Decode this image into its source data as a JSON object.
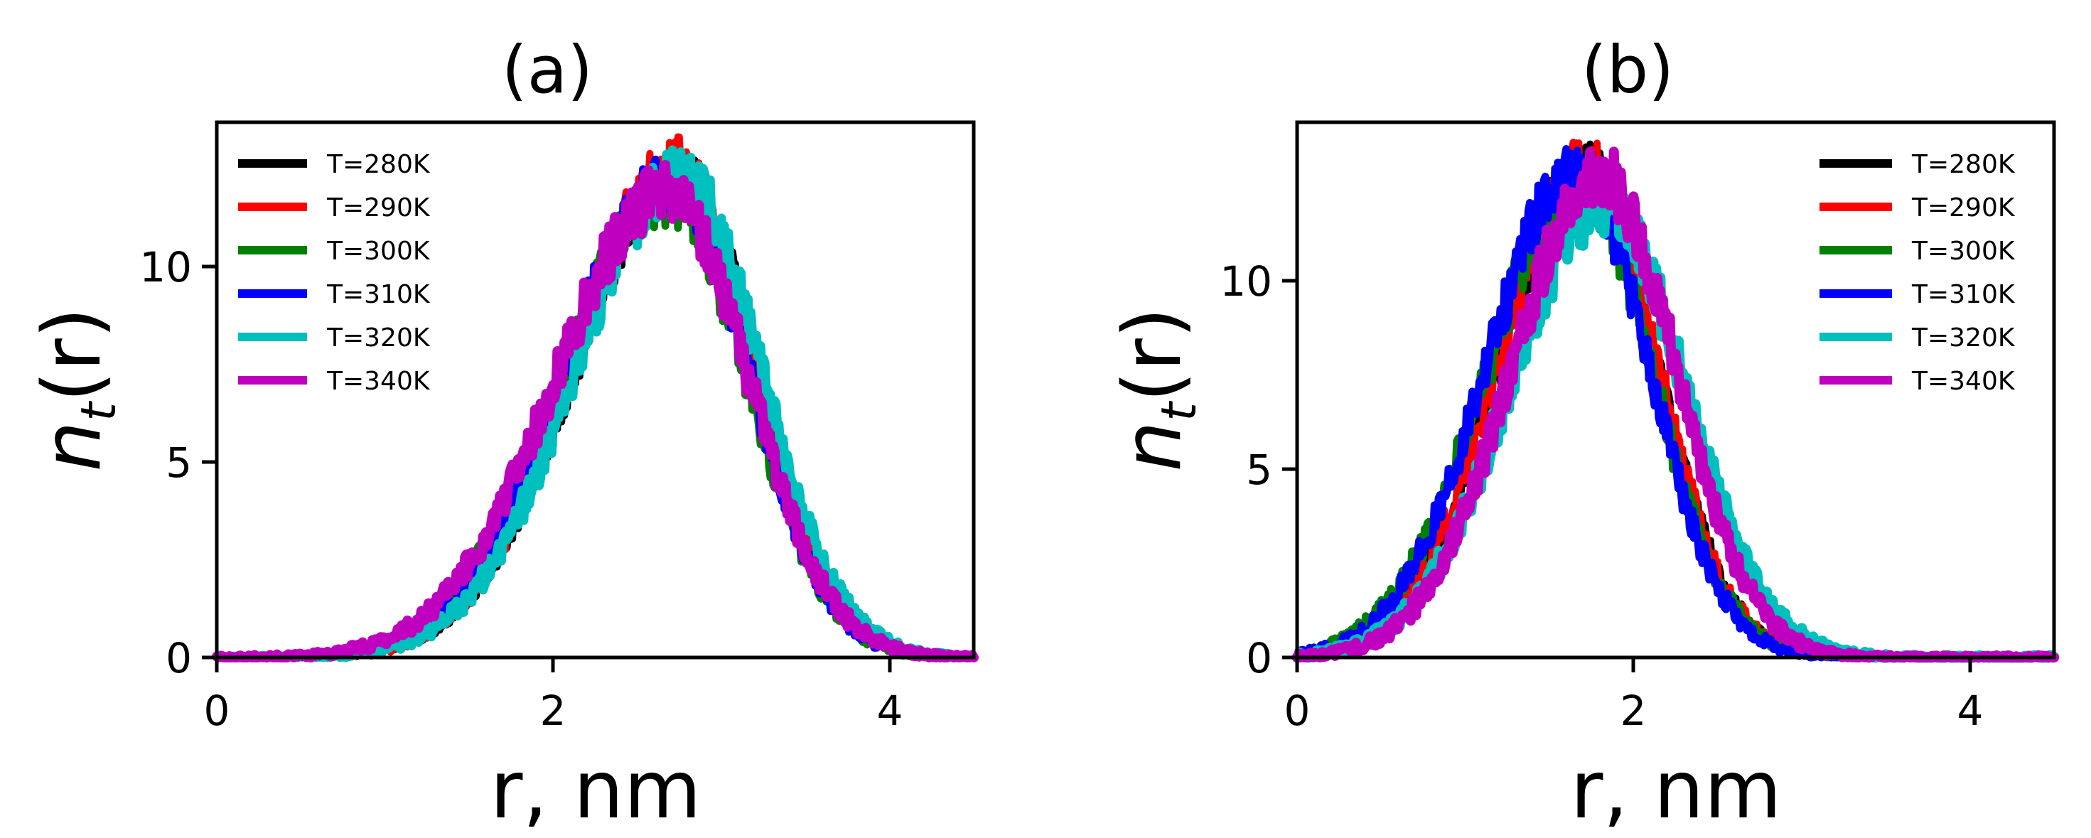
{
  "chart_data": [
    {
      "type": "line",
      "id": "a",
      "title": "(a)",
      "xlabel": "r, nm",
      "ylabel_main": "n",
      "ylabel_sub": "t",
      "ylabel_arg": "(r)",
      "xlim": [
        0,
        4.5
      ],
      "ylim": [
        0,
        13.7
      ],
      "xticks": [
        0,
        2,
        4
      ],
      "xtick_labels": [
        "0",
        "2",
        "4"
      ],
      "yticks": [
        0,
        5,
        10
      ],
      "ytick_labels": [
        "0",
        "5",
        "10"
      ],
      "legend_position": "top-left",
      "series": [
        {
          "name": "T=280K",
          "color": "#000000",
          "peak_r": 2.75,
          "peak_n": 12.3,
          "sigma_left": 0.62,
          "sigma_right": 0.46
        },
        {
          "name": "T=290K",
          "color": "#ff0000",
          "peak_r": 2.72,
          "peak_n": 12.6,
          "sigma_left": 0.6,
          "sigma_right": 0.47
        },
        {
          "name": "T=300K",
          "color": "#008000",
          "peak_r": 2.68,
          "peak_n": 11.8,
          "sigma_left": 0.64,
          "sigma_right": 0.47
        },
        {
          "name": "T=310K",
          "color": "#0000ff",
          "peak_r": 2.7,
          "peak_n": 12.2,
          "sigma_left": 0.63,
          "sigma_right": 0.46
        },
        {
          "name": "T=320K",
          "color": "#00bfbf",
          "peak_r": 2.76,
          "peak_n": 12.3,
          "sigma_left": 0.62,
          "sigma_right": 0.47
        },
        {
          "name": "T=340K",
          "color": "#bf00bf",
          "peak_r": 2.68,
          "peak_n": 11.9,
          "sigma_left": 0.66,
          "sigma_right": 0.48
        }
      ]
    },
    {
      "type": "line",
      "id": "b",
      "title": "(b)",
      "xlabel": "r, nm",
      "ylabel_main": "n",
      "ylabel_sub": "t",
      "ylabel_arg": "(r)",
      "xlim": [
        0,
        4.5
      ],
      "ylim": [
        0,
        14.2
      ],
      "xticks": [
        0,
        2,
        4
      ],
      "xtick_labels": [
        "0",
        "2",
        "4"
      ],
      "yticks": [
        0,
        5,
        10
      ],
      "ytick_labels": [
        "0",
        "5",
        "10"
      ],
      "legend_position": "top-right",
      "series": [
        {
          "name": "T=280K",
          "color": "#000000",
          "peak_r": 1.72,
          "peak_n": 12.9,
          "sigma_left": 0.52,
          "sigma_right": 0.42
        },
        {
          "name": "T=290K",
          "color": "#ff0000",
          "peak_r": 1.72,
          "peak_n": 13.0,
          "sigma_left": 0.52,
          "sigma_right": 0.42
        },
        {
          "name": "T=300K",
          "color": "#008000",
          "peak_r": 1.68,
          "peak_n": 12.6,
          "sigma_left": 0.55,
          "sigma_right": 0.43
        },
        {
          "name": "T=310K",
          "color": "#0000ff",
          "peak_r": 1.66,
          "peak_n": 12.9,
          "sigma_left": 0.53,
          "sigma_right": 0.43
        },
        {
          "name": "T=320K",
          "color": "#00bfbf",
          "peak_r": 1.82,
          "peak_n": 12.0,
          "sigma_left": 0.55,
          "sigma_right": 0.48
        },
        {
          "name": "T=340K",
          "color": "#bf00bf",
          "peak_r": 1.8,
          "peak_n": 12.8,
          "sigma_left": 0.52,
          "sigma_right": 0.45
        }
      ]
    }
  ]
}
